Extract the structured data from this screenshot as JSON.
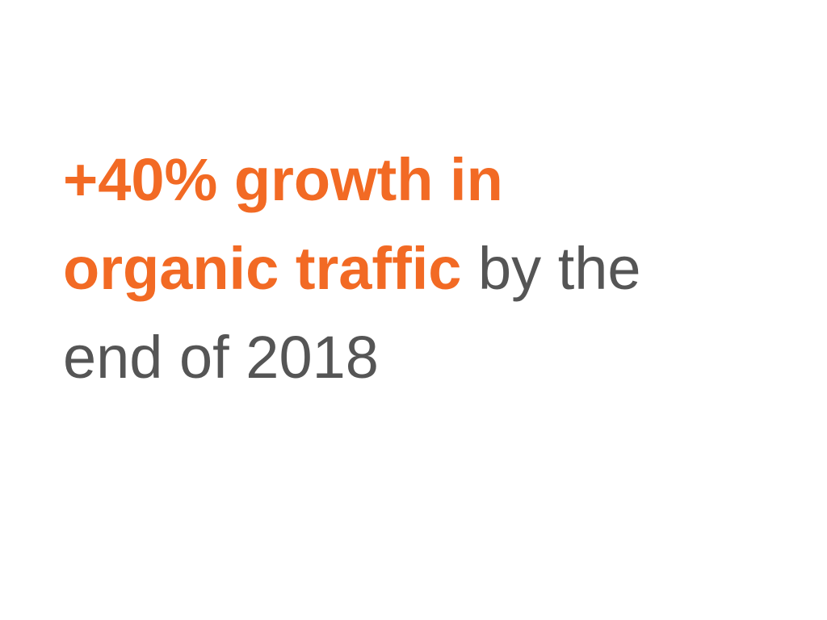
{
  "statement": {
    "highlight_line1": "+40% growth in",
    "highlight_line2": "organic traffic",
    "rest_line2": " by the",
    "rest_line3": "end of 2018"
  },
  "colors": {
    "highlight": "#f26a24",
    "text": "#555555",
    "background": "#ffffff"
  }
}
